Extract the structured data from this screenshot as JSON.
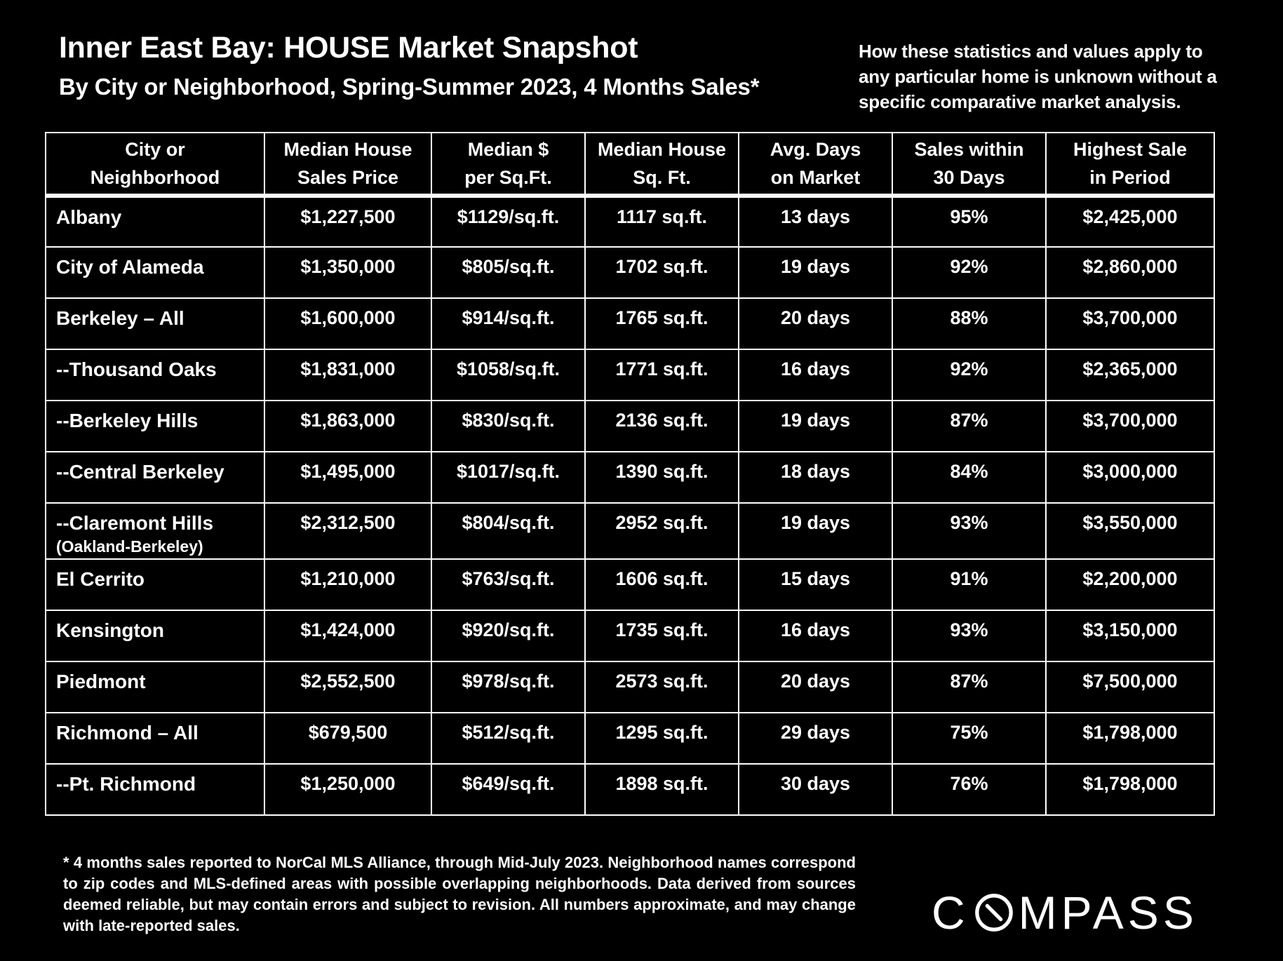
{
  "header": {
    "title": "Inner East Bay: HOUSE Market Snapshot",
    "subtitle": "By City or Neighborhood, Spring-Summer 2023, 4 Months Sales*",
    "disclaimer": "How these statistics and values apply to any particular home is unknown without a specific comparative market analysis."
  },
  "chart_data": {
    "type": "table",
    "title": "Inner East Bay: HOUSE Market Snapshot",
    "columns": [
      "City or\nNeighborhood",
      "Median House\nSales Price",
      "Median $\nper Sq.Ft.",
      "Median House\nSq. Ft.",
      "Avg. Days\non Market",
      "Sales within\n30 Days",
      "Highest Sale\nin Period"
    ],
    "rows": [
      {
        "area": "Albany",
        "note": "",
        "price": "$1,227,500",
        "ppsf": "$1129/sq.ft.",
        "sqft": "1117 sq.ft.",
        "dom": "13 days",
        "within30": "95%",
        "highest": "$2,425,000"
      },
      {
        "area": "City of Alameda",
        "note": "",
        "price": "$1,350,000",
        "ppsf": "$805/sq.ft.",
        "sqft": "1702 sq.ft.",
        "dom": "19 days",
        "within30": "92%",
        "highest": "$2,860,000"
      },
      {
        "area": "Berkeley – All",
        "note": "",
        "price": "$1,600,000",
        "ppsf": "$914/sq.ft.",
        "sqft": "1765 sq.ft.",
        "dom": "20 days",
        "within30": "88%",
        "highest": "$3,700,000"
      },
      {
        "area": "--Thousand Oaks",
        "note": "",
        "price": "$1,831,000",
        "ppsf": "$1058/sq.ft.",
        "sqft": "1771 sq.ft.",
        "dom": "16 days",
        "within30": "92%",
        "highest": "$2,365,000"
      },
      {
        "area": "--Berkeley Hills",
        "note": "",
        "price": "$1,863,000",
        "ppsf": "$830/sq.ft.",
        "sqft": "2136 sq.ft.",
        "dom": "19 days",
        "within30": "87%",
        "highest": "$3,700,000"
      },
      {
        "area": "--Central Berkeley",
        "note": "",
        "price": "$1,495,000",
        "ppsf": "$1017/sq.ft.",
        "sqft": "1390 sq.ft.",
        "dom": "18 days",
        "within30": "84%",
        "highest": "$3,000,000"
      },
      {
        "area": "--Claremont Hills",
        "note": "(Oakland-Berkeley)",
        "price": "$2,312,500",
        "ppsf": "$804/sq.ft.",
        "sqft": "2952 sq.ft.",
        "dom": "19 days",
        "within30": "93%",
        "highest": "$3,550,000"
      },
      {
        "area": "El Cerrito",
        "note": "",
        "price": "$1,210,000",
        "ppsf": "$763/sq.ft.",
        "sqft": "1606 sq.ft.",
        "dom": "15 days",
        "within30": "91%",
        "highest": "$2,200,000"
      },
      {
        "area": "Kensington",
        "note": "",
        "price": "$1,424,000",
        "ppsf": "$920/sq.ft.",
        "sqft": "1735 sq.ft.",
        "dom": "16 days",
        "within30": "93%",
        "highest": "$3,150,000"
      },
      {
        "area": "Piedmont",
        "note": "",
        "price": "$2,552,500",
        "ppsf": "$978/sq.ft.",
        "sqft": "2573 sq.ft.",
        "dom": "20 days",
        "within30": "87%",
        "highest": "$7,500,000"
      },
      {
        "area": "Richmond – All",
        "note": "",
        "price": "$679,500",
        "ppsf": "$512/sq.ft.",
        "sqft": "1295 sq.ft.",
        "dom": "29 days",
        "within30": "75%",
        "highest": "$1,798,000"
      },
      {
        "area": "--Pt. Richmond",
        "note": "",
        "price": "$1,250,000",
        "ppsf": "$649/sq.ft.",
        "sqft": "1898 sq.ft.",
        "dom": "30 days",
        "within30": "76%",
        "highest": "$1,798,000"
      }
    ]
  },
  "footnote": "* 4 months sales reported to NorCal MLS Alliance, through Mid-July 2023. Neighborhood names correspond to zip codes and MLS-defined areas with possible overlapping neighborhoods. Data derived from sources deemed reliable, but may contain errors and subject to revision. All numbers approximate, and may change with late-reported sales.",
  "logo": {
    "text": "COMPASS",
    "icon": "compass-o-icon"
  }
}
